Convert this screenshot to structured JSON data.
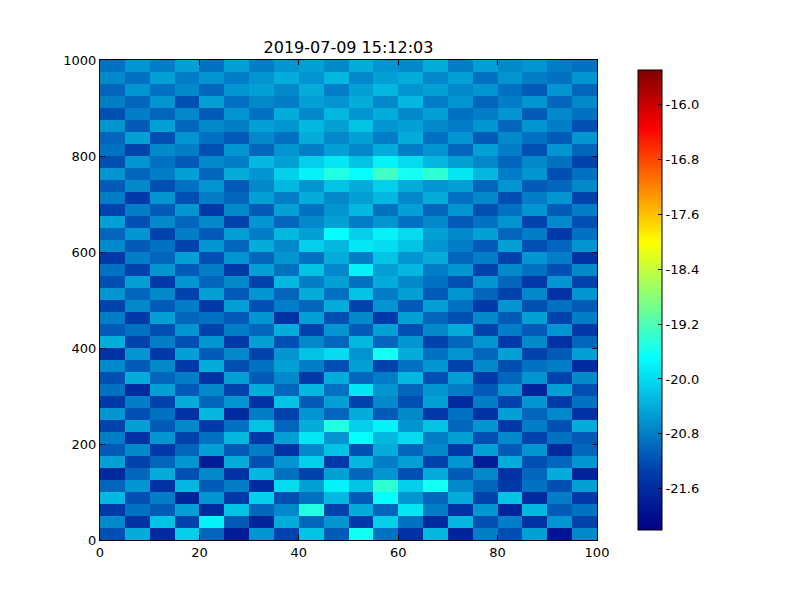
{
  "chart_data": {
    "type": "heatmap",
    "title": "2019-07-09 15:12:03",
    "color": "Jet",
    "xlim": [
      0,
      100
    ],
    "xticks": [
      0,
      20,
      40,
      60,
      80,
      100
    ],
    "ylim": [
      0,
      1000
    ],
    "yticks": [
      0,
      200,
      400,
      600,
      800,
      1000
    ],
    "zlim": [
      -22.2,
      -15.5
    ],
    "zticks": [
      {
        "value": -16.0,
        "label": "-16.0"
      },
      -16.8,
      -17.6,
      -18.4,
      -19.2,
      {
        "value": -20.0,
        "label": "-20.0"
      },
      -20.8,
      -21.6
    ],
    "x": [
      2.5,
      7.5,
      12.5,
      17.5,
      22.5,
      27.5,
      32.5,
      37.5,
      42.5,
      47.5,
      52.5,
      57.5,
      62.5,
      67.5,
      72.5,
      77.5,
      82.5,
      87.5,
      92.5,
      97.5
    ],
    "y": [
      12.5,
      37.5,
      62.5,
      87.5,
      112.5,
      137.5,
      162.5,
      187.5,
      212.5,
      237.5,
      262.5,
      287.5,
      312.5,
      337.5,
      362.5,
      387.5,
      412.5,
      437.5,
      462.5,
      487.5,
      512.5,
      537.5,
      562.5,
      587.5,
      612.5,
      637.5,
      662.5,
      687.5,
      712.5,
      737.5,
      762.5,
      787.5,
      812.5,
      837.5,
      862.5,
      887.5,
      912.5,
      937.5,
      962.5,
      987.5
    ],
    "z": [
      [
        -21.2,
        -20.4,
        -21.6,
        -20.1,
        -21.0,
        -21.8,
        -20.6,
        -21.3,
        -20.2,
        -21.1,
        -19.6,
        -20.9,
        -21.5,
        -20.3,
        -21.7,
        -20.8,
        -21.2,
        -20.5,
        -21.9,
        -20.7
      ],
      [
        -20.7,
        -21.5,
        -20.2,
        -21.3,
        -19.8,
        -21.1,
        -21.7,
        -20.4,
        -21.0,
        -20.6,
        -21.4,
        -20.1,
        -20.9,
        -21.6,
        -20.3,
        -21.2,
        -20.8,
        -21.5,
        -20.6,
        -21.3
      ],
      [
        -21.4,
        -20.9,
        -21.1,
        -20.5,
        -21.6,
        -20.2,
        -21.0,
        -20.7,
        -19.5,
        -21.3,
        -20.4,
        -21.0,
        -19.9,
        -20.8,
        -21.5,
        -20.6,
        -21.7,
        -20.3,
        -21.1,
        -20.9
      ],
      [
        -20.3,
        -21.2,
        -20.8,
        -21.7,
        -20.6,
        -21.4,
        -20.1,
        -21.2,
        -20.9,
        -20.3,
        -21.1,
        -19.7,
        -20.6,
        -21.0,
        -20.4,
        -21.3,
        -20.2,
        -21.6,
        -20.8,
        -21.4
      ],
      [
        -21.0,
        -20.6,
        -21.5,
        -20.3,
        -21.1,
        -20.8,
        -21.6,
        -20.0,
        -20.5,
        -19.8,
        -20.2,
        -19.4,
        -20.1,
        -19.6,
        -20.7,
        -21.0,
        -21.4,
        -20.9,
        -21.2,
        -20.5
      ],
      [
        -21.6,
        -21.0,
        -20.4,
        -21.2,
        -20.7,
        -21.5,
        -20.3,
        -20.9,
        -21.3,
        -20.5,
        -21.0,
        -20.6,
        -21.2,
        -20.4,
        -21.1,
        -20.7,
        -21.5,
        -21.0,
        -20.4,
        -21.7
      ],
      [
        -20.5,
        -21.3,
        -21.0,
        -20.6,
        -21.8,
        -20.4,
        -21.2,
        -20.6,
        -20.1,
        -21.4,
        -20.3,
        -20.8,
        -20.5,
        -21.3,
        -20.6,
        -21.8,
        -20.4,
        -21.2,
        -21.0,
        -20.6
      ],
      [
        -21.1,
        -20.7,
        -21.4,
        -21.0,
        -20.5,
        -21.1,
        -20.8,
        -21.5,
        -20.7,
        -20.2,
        -21.2,
        -20.4,
        -21.0,
        -20.7,
        -21.4,
        -20.5,
        -21.1,
        -20.6,
        -21.6,
        -21.0
      ],
      [
        -20.8,
        -21.5,
        -20.6,
        -21.3,
        -20.9,
        -20.3,
        -21.4,
        -20.5,
        -19.9,
        -20.6,
        -19.7,
        -20.3,
        -20.0,
        -20.8,
        -20.5,
        -21.2,
        -20.7,
        -21.3,
        -20.9,
        -21.1
      ],
      [
        -21.3,
        -20.5,
        -21.1,
        -20.7,
        -21.4,
        -20.9,
        -20.2,
        -21.0,
        -20.4,
        -19.5,
        -20.1,
        -19.8,
        -20.6,
        -20.2,
        -21.0,
        -20.6,
        -21.4,
        -20.8,
        -21.2,
        -20.4
      ],
      [
        -20.6,
        -21.2,
        -20.9,
        -21.5,
        -20.3,
        -21.6,
        -20.8,
        -21.3,
        -20.6,
        -21.0,
        -20.4,
        -21.1,
        -20.7,
        -21.4,
        -20.9,
        -21.5,
        -20.5,
        -21.0,
        -20.7,
        -21.5
      ],
      [
        -21.4,
        -20.8,
        -21.3,
        -20.4,
        -21.0,
        -20.6,
        -21.5,
        -20.2,
        -21.1,
        -20.5,
        -21.3,
        -20.7,
        -21.2,
        -20.5,
        -21.6,
        -20.8,
        -21.3,
        -20.6,
        -21.4,
        -20.9
      ],
      [
        -20.9,
        -21.6,
        -20.5,
        -21.1,
        -20.7,
        -21.3,
        -20.4,
        -21.0,
        -20.3,
        -20.9,
        -19.9,
        -20.6,
        -21.0,
        -20.6,
        -20.8,
        -21.1,
        -20.6,
        -21.7,
        -20.5,
        -21.2
      ],
      [
        -21.2,
        -20.4,
        -21.0,
        -20.8,
        -21.5,
        -20.5,
        -21.1,
        -20.7,
        -21.4,
        -20.4,
        -21.0,
        -20.8,
        -20.3,
        -21.2,
        -20.5,
        -21.4,
        -21.0,
        -20.6,
        -21.3,
        -20.7
      ],
      [
        -20.7,
        -21.1,
        -20.7,
        -21.4,
        -20.4,
        -21.2,
        -20.9,
        -20.5,
        -20.8,
        -21.2,
        -20.5,
        -21.3,
        -20.9,
        -20.6,
        -21.3,
        -20.7,
        -21.2,
        -20.9,
        -20.8,
        -21.6
      ],
      [
        -21.5,
        -20.6,
        -21.4,
        -20.5,
        -21.1,
        -20.7,
        -21.3,
        -20.6,
        -20.2,
        -20.0,
        -20.6,
        -19.6,
        -20.4,
        -20.9,
        -20.6,
        -21.0,
        -20.5,
        -21.3,
        -21.1,
        -20.5
      ],
      [
        -20.4,
        -21.3,
        -20.8,
        -21.2,
        -20.6,
        -21.4,
        -20.5,
        -21.2,
        -20.7,
        -21.0,
        -20.3,
        -21.0,
        -20.6,
        -21.3,
        -21.0,
        -20.6,
        -21.4,
        -20.7,
        -21.5,
        -21.0
      ],
      [
        -21.1,
        -20.9,
        -21.2,
        -20.6,
        -21.3,
        -20.8,
        -21.0,
        -20.4,
        -21.3,
        -20.6,
        -21.1,
        -20.5,
        -21.2,
        -20.7,
        -20.4,
        -21.3,
        -20.8,
        -21.1,
        -20.6,
        -21.4
      ],
      [
        -20.8,
        -21.4,
        -20.5,
        -21.0,
        -20.9,
        -21.1,
        -20.6,
        -21.5,
        -20.5,
        -21.2,
        -20.7,
        -21.4,
        -20.5,
        -21.0,
        -21.2,
        -20.7,
        -21.1,
        -20.5,
        -21.3,
        -20.8
      ],
      [
        -21.3,
        -20.7,
        -21.1,
        -20.8,
        -21.4,
        -20.5,
        -21.2,
        -20.8,
        -21.0,
        -20.4,
        -21.3,
        -20.6,
        -21.1,
        -20.5,
        -20.9,
        -21.4,
        -20.6,
        -21.2,
        -20.9,
        -21.1
      ],
      [
        -20.6,
        -21.0,
        -20.7,
        -21.3,
        -20.5,
        -21.1,
        -20.6,
        -21.0,
        -20.4,
        -20.9,
        -20.2,
        -20.8,
        -20.5,
        -21.1,
        -20.6,
        -21.0,
        -21.3,
        -20.7,
        -21.5,
        -20.6
      ],
      [
        -21.2,
        -20.5,
        -21.4,
        -20.6,
        -21.0,
        -20.7,
        -21.3,
        -20.3,
        -20.8,
        -20.5,
        -20.9,
        -20.4,
        -20.7,
        -20.9,
        -21.2,
        -20.6,
        -21.0,
        -21.4,
        -20.6,
        -21.3
      ],
      [
        -20.9,
        -21.3,
        -20.6,
        -21.1,
        -20.8,
        -21.4,
        -20.5,
        -20.9,
        -20.2,
        -20.7,
        -19.8,
        -20.5,
        -20.3,
        -20.8,
        -20.6,
        -21.3,
        -20.7,
        -20.9,
        -21.2,
        -20.7
      ],
      [
        -21.4,
        -20.8,
        -21.0,
        -20.5,
        -21.2,
        -20.6,
        -21.0,
        -20.6,
        -20.9,
        -20.4,
        -20.8,
        -20.2,
        -20.6,
        -20.4,
        -21.0,
        -20.8,
        -21.3,
        -20.6,
        -20.8,
        -21.5
      ],
      [
        -20.7,
        -21.1,
        -20.9,
        -21.3,
        -20.6,
        -21.0,
        -20.4,
        -20.7,
        -20.1,
        -20.3,
        -19.9,
        -20.0,
        -20.2,
        -20.6,
        -20.8,
        -21.1,
        -20.5,
        -21.2,
        -21.0,
        -20.6
      ],
      [
        -21.0,
        -20.6,
        -21.3,
        -20.8,
        -21.1,
        -20.5,
        -20.8,
        -20.3,
        -20.5,
        -19.7,
        -20.1,
        -19.8,
        -20.0,
        -20.5,
        -20.7,
        -20.5,
        -21.0,
        -20.8,
        -21.4,
        -20.9
      ],
      [
        -20.5,
        -21.2,
        -20.7,
        -21.0,
        -20.7,
        -21.3,
        -20.6,
        -21.0,
        -20.7,
        -20.5,
        -20.8,
        -20.6,
        -20.9,
        -20.7,
        -21.1,
        -20.9,
        -20.6,
        -21.3,
        -20.7,
        -21.2
      ],
      [
        -21.3,
        -20.8,
        -21.1,
        -20.6,
        -21.4,
        -20.7,
        -21.1,
        -20.5,
        -20.9,
        -20.6,
        -20.3,
        -20.9,
        -20.5,
        -21.0,
        -20.6,
        -21.2,
        -20.9,
        -20.6,
        -21.1,
        -20.8
      ],
      [
        -20.8,
        -21.4,
        -20.6,
        -21.2,
        -20.8,
        -21.0,
        -20.5,
        -20.8,
        -20.4,
        -20.7,
        -20.5,
        -20.3,
        -20.7,
        -20.4,
        -20.9,
        -20.7,
        -21.2,
        -20.8,
        -20.6,
        -21.3
      ],
      [
        -21.1,
        -20.7,
        -21.2,
        -20.9,
        -20.6,
        -21.1,
        -20.7,
        -20.3,
        -20.6,
        -20.2,
        -20.4,
        -20.1,
        -20.4,
        -20.6,
        -20.5,
        -21.0,
        -20.6,
        -21.1,
        -21.0,
        -20.7
      ],
      [
        -20.6,
        -21.0,
        -20.8,
        -20.5,
        -21.0,
        -20.4,
        -20.6,
        -20.1,
        -19.8,
        -19.5,
        -19.7,
        -19.3,
        -19.6,
        -19.4,
        -19.9,
        -20.3,
        -20.8,
        -20.6,
        -21.2,
        -20.9
      ],
      [
        -21.2,
        -20.6,
        -20.9,
        -21.1,
        -20.7,
        -20.8,
        -20.3,
        -20.5,
        -20.1,
        -19.9,
        -20.2,
        -19.8,
        -20.0,
        -20.3,
        -20.5,
        -20.7,
        -21.0,
        -20.7,
        -20.9,
        -21.3
      ],
      [
        -20.9,
        -21.3,
        -20.7,
        -20.8,
        -21.2,
        -20.6,
        -21.0,
        -20.6,
        -20.8,
        -20.5,
        -20.7,
        -20.4,
        -20.8,
        -20.6,
        -21.0,
        -20.5,
        -20.8,
        -21.2,
        -20.6,
        -21.0
      ],
      [
        -21.0,
        -20.5,
        -21.2,
        -20.6,
        -20.9,
        -21.1,
        -20.7,
        -20.9,
        -20.4,
        -20.7,
        -20.5,
        -20.8,
        -20.4,
        -20.9,
        -20.6,
        -21.1,
        -20.7,
        -20.9,
        -21.1,
        -20.6
      ],
      [
        -20.6,
        -21.1,
        -20.5,
        -21.0,
        -20.7,
        -20.8,
        -20.5,
        -20.6,
        -20.3,
        -20.5,
        -20.2,
        -20.6,
        -20.5,
        -20.7,
        -20.8,
        -20.6,
        -21.0,
        -20.6,
        -20.8,
        -21.2
      ],
      [
        -21.2,
        -20.8,
        -21.0,
        -20.7,
        -21.1,
        -20.6,
        -20.9,
        -20.4,
        -20.7,
        -20.3,
        -20.6,
        -20.4,
        -20.7,
        -20.5,
        -20.9,
        -20.8,
        -20.6,
        -21.1,
        -20.7,
        -20.9
      ],
      [
        -20.8,
        -21.0,
        -20.6,
        -21.2,
        -20.5,
        -20.9,
        -20.7,
        -20.8,
        -20.5,
        -20.6,
        -20.4,
        -20.7,
        -20.3,
        -20.8,
        -20.6,
        -21.0,
        -20.8,
        -20.6,
        -21.0,
        -20.7
      ],
      [
        -21.0,
        -20.6,
        -20.9,
        -20.7,
        -21.0,
        -20.6,
        -20.5,
        -20.7,
        -20.4,
        -20.8,
        -20.5,
        -20.3,
        -20.6,
        -20.5,
        -20.7,
        -20.6,
        -20.9,
        -21.1,
        -20.6,
        -21.0
      ],
      [
        -20.7,
        -20.9,
        -20.5,
        -20.8,
        -20.6,
        -20.8,
        -20.6,
        -20.4,
        -20.6,
        -20.3,
        -20.7,
        -20.5,
        -20.4,
        -20.7,
        -20.5,
        -20.9,
        -20.6,
        -20.8,
        -20.9,
        -20.6
      ],
      [
        -20.9,
        -20.6,
        -20.8,
        -20.5,
        -20.9,
        -20.5,
        -20.8,
        -20.6,
        -20.5,
        -20.7,
        -20.4,
        -20.6,
        -20.7,
        -20.4,
        -20.8,
        -20.5,
        -20.7,
        -20.6,
        -20.8,
        -20.9
      ]
    ]
  }
}
